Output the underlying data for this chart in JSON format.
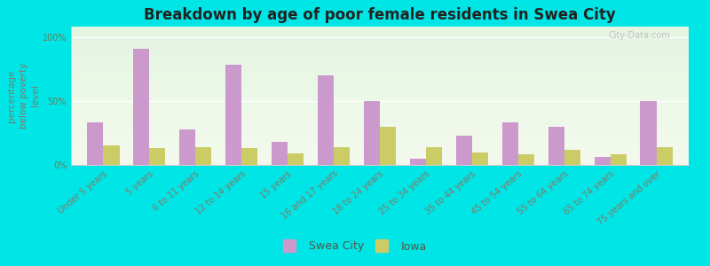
{
  "title": "Breakdown by age of poor female residents in Swea City",
  "ylabel": "percentage\nbelow poverty\nlevel",
  "categories": [
    "Under 5 years",
    "5 years",
    "6 to 11 years",
    "12 to 14 years",
    "15 years",
    "16 and 17 years",
    "18 to 24 years",
    "25 to 34 years",
    "35 to 44 years",
    "45 to 54 years",
    "55 to 64 years",
    "65 to 74 years",
    "75 years and over"
  ],
  "swea_city": [
    33,
    91,
    28,
    78,
    18,
    70,
    50,
    5,
    23,
    33,
    30,
    6,
    50
  ],
  "iowa": [
    15,
    13,
    14,
    13,
    9,
    14,
    30,
    14,
    10,
    8,
    12,
    8,
    14
  ],
  "swea_city_color": "#cc99cc",
  "iowa_color": "#cccc66",
  "background_top": "#f0f8e8",
  "background_bottom": "#e8f8e8",
  "outer_background": "#00e5e5",
  "yticks": [
    0,
    50,
    100
  ],
  "ytick_labels": [
    "0%",
    "50%",
    "100%"
  ],
  "ylim": [
    0,
    108
  ],
  "bar_width": 0.35,
  "title_fontsize": 12,
  "label_fontsize": 7.5,
  "tick_fontsize": 7,
  "watermark": "City-Data.com",
  "watermark_fontsize": 7
}
